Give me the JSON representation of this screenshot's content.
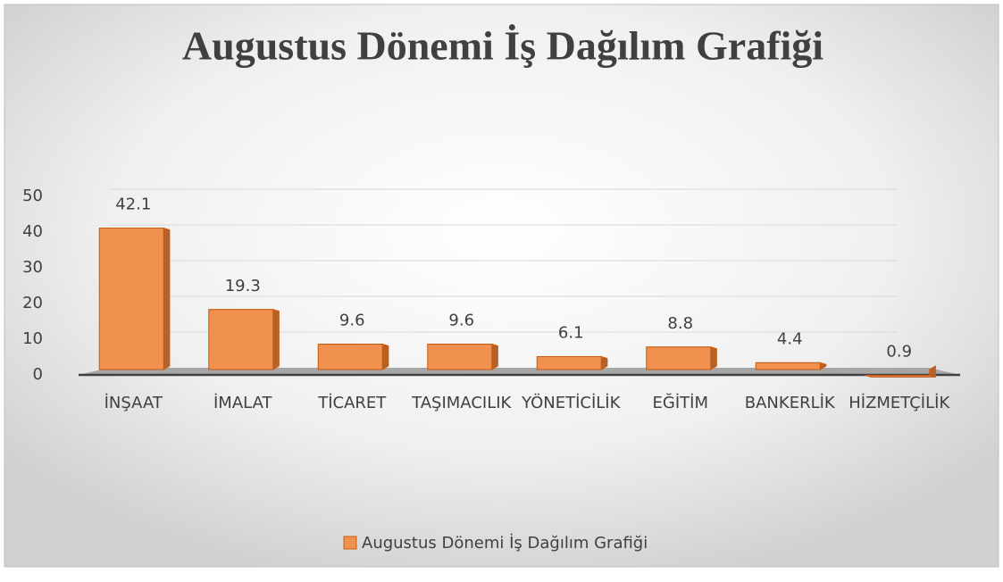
{
  "chart_data": {
    "type": "bar",
    "title": "Augustus Dönemi İş Dağılım Grafiği",
    "categories": [
      "İNŞAAT",
      "İMALAT",
      "TİCARET",
      "TAŞIMACILIK",
      "YÖNETİCİLİK",
      "EĞİTİM",
      "BANKERLİK",
      "HİZMETÇİLİK"
    ],
    "series": [
      {
        "name": "Augustus Dönemi İş Dağılım Grafiği",
        "color": "#f0914f",
        "values": [
          42.1,
          19.3,
          9.6,
          9.6,
          6.1,
          8.8,
          4.4,
          0.9
        ]
      }
    ],
    "ylim": [
      0,
      50
    ],
    "yticks": [
      0,
      10,
      20,
      30,
      40,
      50
    ],
    "grid": true,
    "legend": "bottom"
  }
}
